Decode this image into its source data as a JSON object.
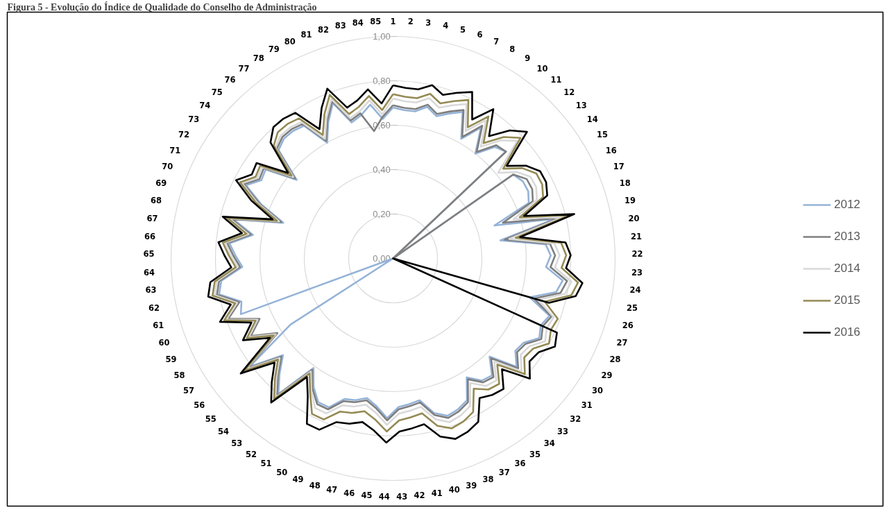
{
  "chart_data": {
    "type": "radar",
    "title": "Figura 5 - Evolução do Índice de Qualidade do Conselho de Administração",
    "categories": [
      "1",
      "2",
      "3",
      "4",
      "5",
      "6",
      "7",
      "8",
      "9",
      "10",
      "11",
      "12",
      "13",
      "14",
      "15",
      "16",
      "17",
      "18",
      "19",
      "20",
      "21",
      "22",
      "23",
      "24",
      "25",
      "26",
      "27",
      "28",
      "29",
      "30",
      "31",
      "32",
      "33",
      "34",
      "35",
      "36",
      "37",
      "38",
      "39",
      "40",
      "41",
      "42",
      "43",
      "44",
      "45",
      "46",
      "47",
      "48",
      "49",
      "50",
      "51",
      "52",
      "53",
      "54",
      "55",
      "56",
      "57",
      "58",
      "59",
      "60",
      "61",
      "62",
      "63",
      "64",
      "65",
      "66",
      "67",
      "68",
      "69",
      "70",
      "71",
      "72",
      "73",
      "74",
      "75",
      "76",
      "77",
      "78",
      "79",
      "80",
      "81",
      "82",
      "83",
      "84",
      "85"
    ],
    "ylim": [
      0,
      1
    ],
    "yticks": [
      {
        "value": 0,
        "label": "0,00"
      },
      {
        "value": 0.2,
        "label": "0,20"
      },
      {
        "value": 0.4,
        "label": "0,40"
      },
      {
        "value": 0.6,
        "label": "0,60"
      },
      {
        "value": 0.8,
        "label": "0,80"
      },
      {
        "value": 1,
        "label": "1,00"
      }
    ],
    "grid": true,
    "legend": "right",
    "series": [
      {
        "name": "2012",
        "color": "#95b3d7",
        "values": [
          0.68,
          0.67,
          0.67,
          0.7,
          0.67,
          0.7,
          0.73,
          0.62,
          0.71,
          0.6,
          0.68,
          0.7,
          0,
          0.66,
          0.68,
          0.68,
          0.66,
          0.48,
          0.75,
          0.49,
          0.69,
          0.71,
          0.69,
          0.77,
          0.75,
          0.64,
          0.75,
          0.73,
          0.75,
          0.7,
          0.69,
          0.74,
          0.62,
          0.69,
          0.68,
          0.63,
          0.72,
          0.74,
          0.75,
          0.72,
          0.65,
          0.66,
          0.67,
          0.72,
          0.67,
          0.64,
          0.66,
          0.67,
          0.73,
          0.73,
          0.68,
          0.61,
          0.8,
          0.73,
          0.66,
          0.81,
          0.55,
          0,
          0,
          0.73,
          0.71,
          0.8,
          0.78,
          0.68,
          0.71,
          0.74,
          0.64,
          0.74,
          0.52,
          0.64,
          0.74,
          0.69,
          0.7,
          0.56,
          0.71,
          0.73,
          0.73,
          0.72,
          0.6,
          0.68,
          0.75,
          0.64,
          0.66,
          0.7,
          0.63
        ]
      },
      {
        "name": "2013",
        "color": "#7f7f7f",
        "values": [
          0.69,
          0.68,
          0.68,
          0.71,
          0.68,
          0.71,
          0.74,
          0.63,
          0.72,
          0.61,
          0.69,
          0.7,
          0,
          0.66,
          0.7,
          0.7,
          0.68,
          0.52,
          0.77,
          0.51,
          0.71,
          0.73,
          0.71,
          0.79,
          0.77,
          0.66,
          0.76,
          0.74,
          0.76,
          0.71,
          0.7,
          0.75,
          0.63,
          0.7,
          0.69,
          0.64,
          0.73,
          0.75,
          0.76,
          0.73,
          0.66,
          0.67,
          0.68,
          0.73,
          0.68,
          0.65,
          0.67,
          0.68,
          0.74,
          0.74,
          0.69,
          0.62,
          0.81,
          0.74,
          0.67,
          0.82,
          0.62,
          0.73,
          0.66,
          0.79,
          0.72,
          0.81,
          0.79,
          0.69,
          0.72,
          0.75,
          0.65,
          0.75,
          0.53,
          0.65,
          0.75,
          0.7,
          0.71,
          0.57,
          0.72,
          0.74,
          0.74,
          0.73,
          0.61,
          0.69,
          0.76,
          0.65,
          0.67,
          0.58,
          0.64
        ]
      },
      {
        "name": "2014",
        "color": "#d9d9d9",
        "values": [
          0.72,
          0.71,
          0.71,
          0.74,
          0.71,
          0.74,
          0.77,
          0.66,
          0.75,
          0.64,
          0.72,
          0.77,
          0.61,
          0.68,
          0.72,
          0.72,
          0.7,
          0.57,
          0.79,
          0.53,
          0.73,
          0.75,
          0.73,
          0.81,
          0.79,
          0.68,
          0.77,
          0.76,
          0.78,
          0.73,
          0.72,
          0.77,
          0.65,
          0.72,
          0.71,
          0.66,
          0.75,
          0.77,
          0.78,
          0.75,
          0.68,
          0.69,
          0.7,
          0.75,
          0.7,
          0.67,
          0.69,
          0.7,
          0.76,
          0.76,
          0.7,
          0.63,
          0.82,
          0.75,
          0.68,
          0.83,
          0.63,
          0.74,
          0.67,
          0.8,
          0.73,
          0.82,
          0.8,
          0.7,
          0.73,
          0.76,
          0.66,
          0.76,
          0.54,
          0.66,
          0.76,
          0.71,
          0.72,
          0.58,
          0.73,
          0.75,
          0.75,
          0.74,
          0.62,
          0.7,
          0.77,
          0.66,
          0.68,
          0.72,
          0.65
        ]
      },
      {
        "name": "2015",
        "color": "#948a54",
        "values": [
          0.74,
          0.73,
          0.73,
          0.76,
          0.73,
          0.76,
          0.79,
          0.68,
          0.77,
          0.66,
          0.74,
          0.79,
          0.64,
          0.71,
          0.75,
          0.75,
          0.73,
          0.6,
          0.82,
          0.56,
          0.76,
          0.78,
          0.76,
          0.84,
          0.82,
          0.71,
          0.79,
          0.78,
          0.8,
          0.75,
          0.74,
          0.79,
          0.67,
          0.74,
          0.73,
          0.69,
          0.78,
          0.8,
          0.81,
          0.78,
          0.71,
          0.72,
          0.73,
          0.78,
          0.73,
          0.7,
          0.72,
          0.73,
          0.79,
          0.79,
          0.71,
          0.64,
          0.83,
          0.76,
          0.69,
          0.84,
          0.64,
          0.75,
          0.68,
          0.81,
          0.74,
          0.83,
          0.81,
          0.71,
          0.74,
          0.77,
          0.67,
          0.77,
          0.55,
          0.67,
          0.77,
          0.72,
          0.73,
          0.59,
          0.74,
          0.77,
          0.77,
          0.76,
          0.64,
          0.72,
          0.79,
          0.68,
          0.7,
          0.74,
          0.67
        ]
      },
      {
        "name": "2016",
        "color": "#000000",
        "values": [
          0.78,
          0.77,
          0.77,
          0.8,
          0.77,
          0.8,
          0.83,
          0.72,
          0.81,
          0.7,
          0.78,
          0.83,
          0.66,
          0.73,
          0.77,
          0.77,
          0.75,
          0.62,
          0.84,
          0.58,
          0.78,
          0.8,
          0.78,
          0.86,
          0.84,
          0.73,
          0,
          0.81,
          0.83,
          0.78,
          0.77,
          0.82,
          0.7,
          0.77,
          0.76,
          0.74,
          0.83,
          0.85,
          0.86,
          0.83,
          0.76,
          0.77,
          0.78,
          0.83,
          0.78,
          0.75,
          0.77,
          0.78,
          0.84,
          0.84,
          0.73,
          0.66,
          0.85,
          0.78,
          0.71,
          0.86,
          0.66,
          0.77,
          0.7,
          0.83,
          0.76,
          0.85,
          0.83,
          0.73,
          0.76,
          0.79,
          0.69,
          0.79,
          0.57,
          0.69,
          0.79,
          0.74,
          0.75,
          0.61,
          0.76,
          0.8,
          0.8,
          0.79,
          0.67,
          0.75,
          0.82,
          0.71,
          0.73,
          0.77,
          0.7
        ]
      }
    ]
  }
}
